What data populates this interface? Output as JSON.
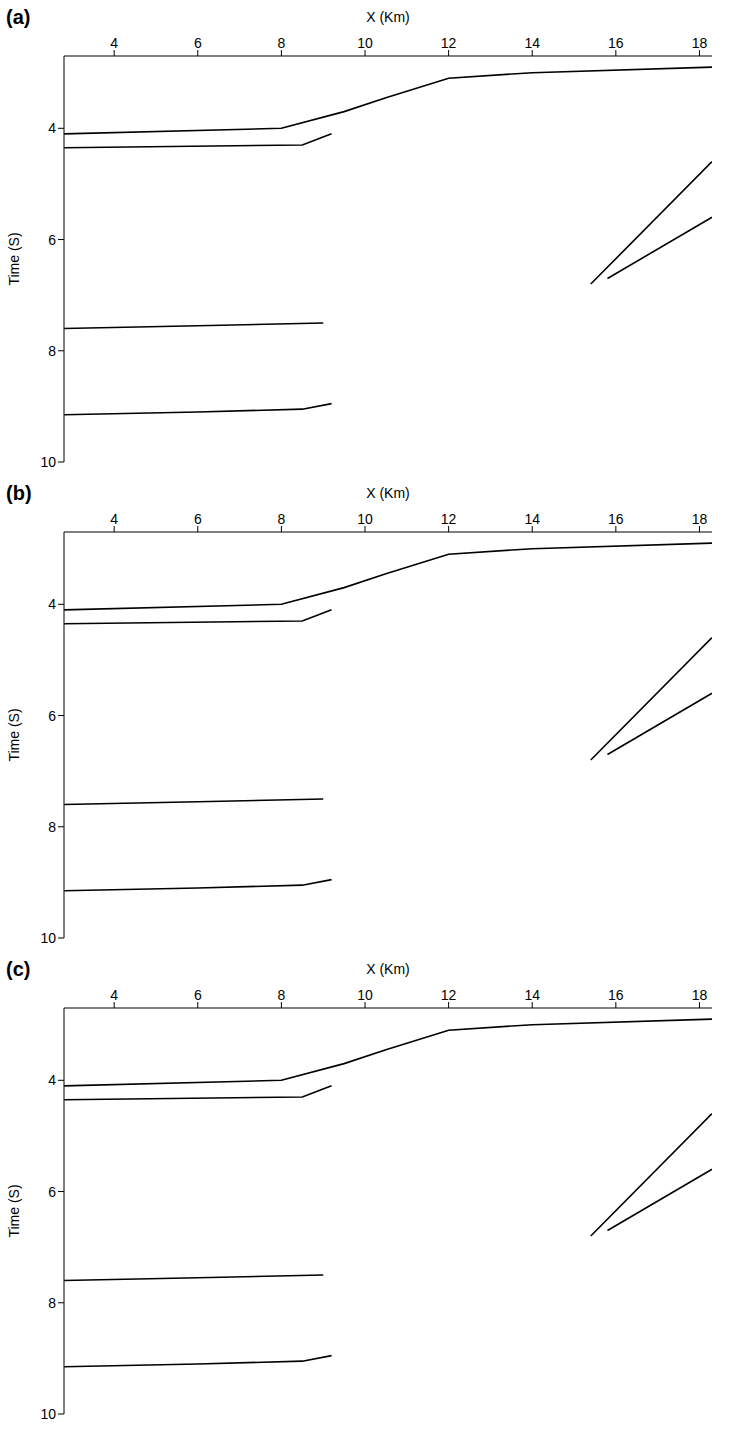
{
  "chart_data": [
    {
      "type": "line",
      "title": "(a)",
      "x_label": "X (Km)",
      "y_label": "Time (S)",
      "xlim": [
        2.8,
        18.3
      ],
      "ylim": [
        2.7,
        10
      ],
      "xticks": [
        4,
        6,
        8,
        10,
        12,
        14,
        16,
        18
      ],
      "yticks": [
        4,
        6,
        8,
        10
      ],
      "color": "#000000",
      "tick_labels": true,
      "series": [
        {
          "x": [
            2.8,
            8.0,
            9.5,
            10.5,
            12.0,
            14.0,
            18.3
          ],
          "values": [
            4.1,
            4.0,
            3.7,
            3.45,
            3.1,
            3.0,
            2.9
          ]
        },
        {
          "x": [
            2.8,
            8.5,
            9.2
          ],
          "values": [
            4.35,
            4.3,
            4.1
          ]
        },
        {
          "x": [
            2.8,
            6.0,
            9.0
          ],
          "values": [
            7.6,
            7.55,
            7.5
          ]
        },
        {
          "x": [
            2.8,
            6.0,
            8.5,
            9.2
          ],
          "values": [
            9.15,
            9.1,
            9.05,
            8.95
          ]
        },
        {
          "x": [
            15.4,
            18.3
          ],
          "values": [
            6.8,
            4.6
          ]
        },
        {
          "x": [
            15.8,
            18.3
          ],
          "values": [
            6.7,
            5.6
          ]
        }
      ]
    },
    {
      "type": "line",
      "title": "(b)",
      "x_label": "X (Km)",
      "y_label": "Time (S)",
      "xlim": [
        2.8,
        18.3
      ],
      "ylim": [
        2.7,
        10
      ],
      "xticks": [
        4,
        6,
        8,
        10,
        12,
        14,
        16,
        18
      ],
      "yticks": [
        4,
        6,
        8,
        10
      ],
      "color": "#000000",
      "tick_labels": true,
      "series": [
        {
          "x": [
            2.8,
            8.0,
            9.5,
            10.5,
            12.0,
            14.0,
            18.3
          ],
          "values": [
            4.1,
            4.0,
            3.7,
            3.45,
            3.1,
            3.0,
            2.9
          ]
        },
        {
          "x": [
            2.8,
            8.5,
            9.2
          ],
          "values": [
            4.35,
            4.3,
            4.1
          ]
        },
        {
          "x": [
            2.8,
            6.0,
            9.0
          ],
          "values": [
            7.6,
            7.55,
            7.5
          ]
        },
        {
          "x": [
            2.8,
            6.0,
            8.5,
            9.2
          ],
          "values": [
            9.15,
            9.1,
            9.05,
            8.95
          ]
        },
        {
          "x": [
            15.4,
            18.3
          ],
          "values": [
            6.8,
            4.6
          ]
        },
        {
          "x": [
            15.8,
            18.3
          ],
          "values": [
            6.7,
            5.6
          ]
        }
      ]
    },
    {
      "type": "line",
      "title": "(c)",
      "x_label": "X (Km)",
      "y_label": "Time (S)",
      "xlim": [
        2.8,
        18.3
      ],
      "ylim": [
        2.7,
        10
      ],
      "xticks": [
        4,
        6,
        8,
        10,
        12,
        14,
        16,
        18
      ],
      "yticks": [
        4,
        6,
        8,
        10
      ],
      "color": "#000000",
      "tick_labels": true,
      "series": [
        {
          "x": [
            2.8,
            8.0,
            9.5,
            10.5,
            12.0,
            14.0,
            18.3
          ],
          "values": [
            4.1,
            4.0,
            3.7,
            3.45,
            3.1,
            3.0,
            2.9
          ]
        },
        {
          "x": [
            2.8,
            8.5,
            9.2
          ],
          "values": [
            4.35,
            4.3,
            4.1
          ]
        },
        {
          "x": [
            2.8,
            6.0,
            9.0
          ],
          "values": [
            7.6,
            7.55,
            7.5
          ]
        },
        {
          "x": [
            2.8,
            6.0,
            8.5,
            9.2
          ],
          "values": [
            9.15,
            9.1,
            9.05,
            8.95
          ]
        },
        {
          "x": [
            15.4,
            18.3
          ],
          "values": [
            6.8,
            4.6
          ]
        },
        {
          "x": [
            15.8,
            18.3
          ],
          "values": [
            6.7,
            5.6
          ]
        }
      ]
    }
  ]
}
